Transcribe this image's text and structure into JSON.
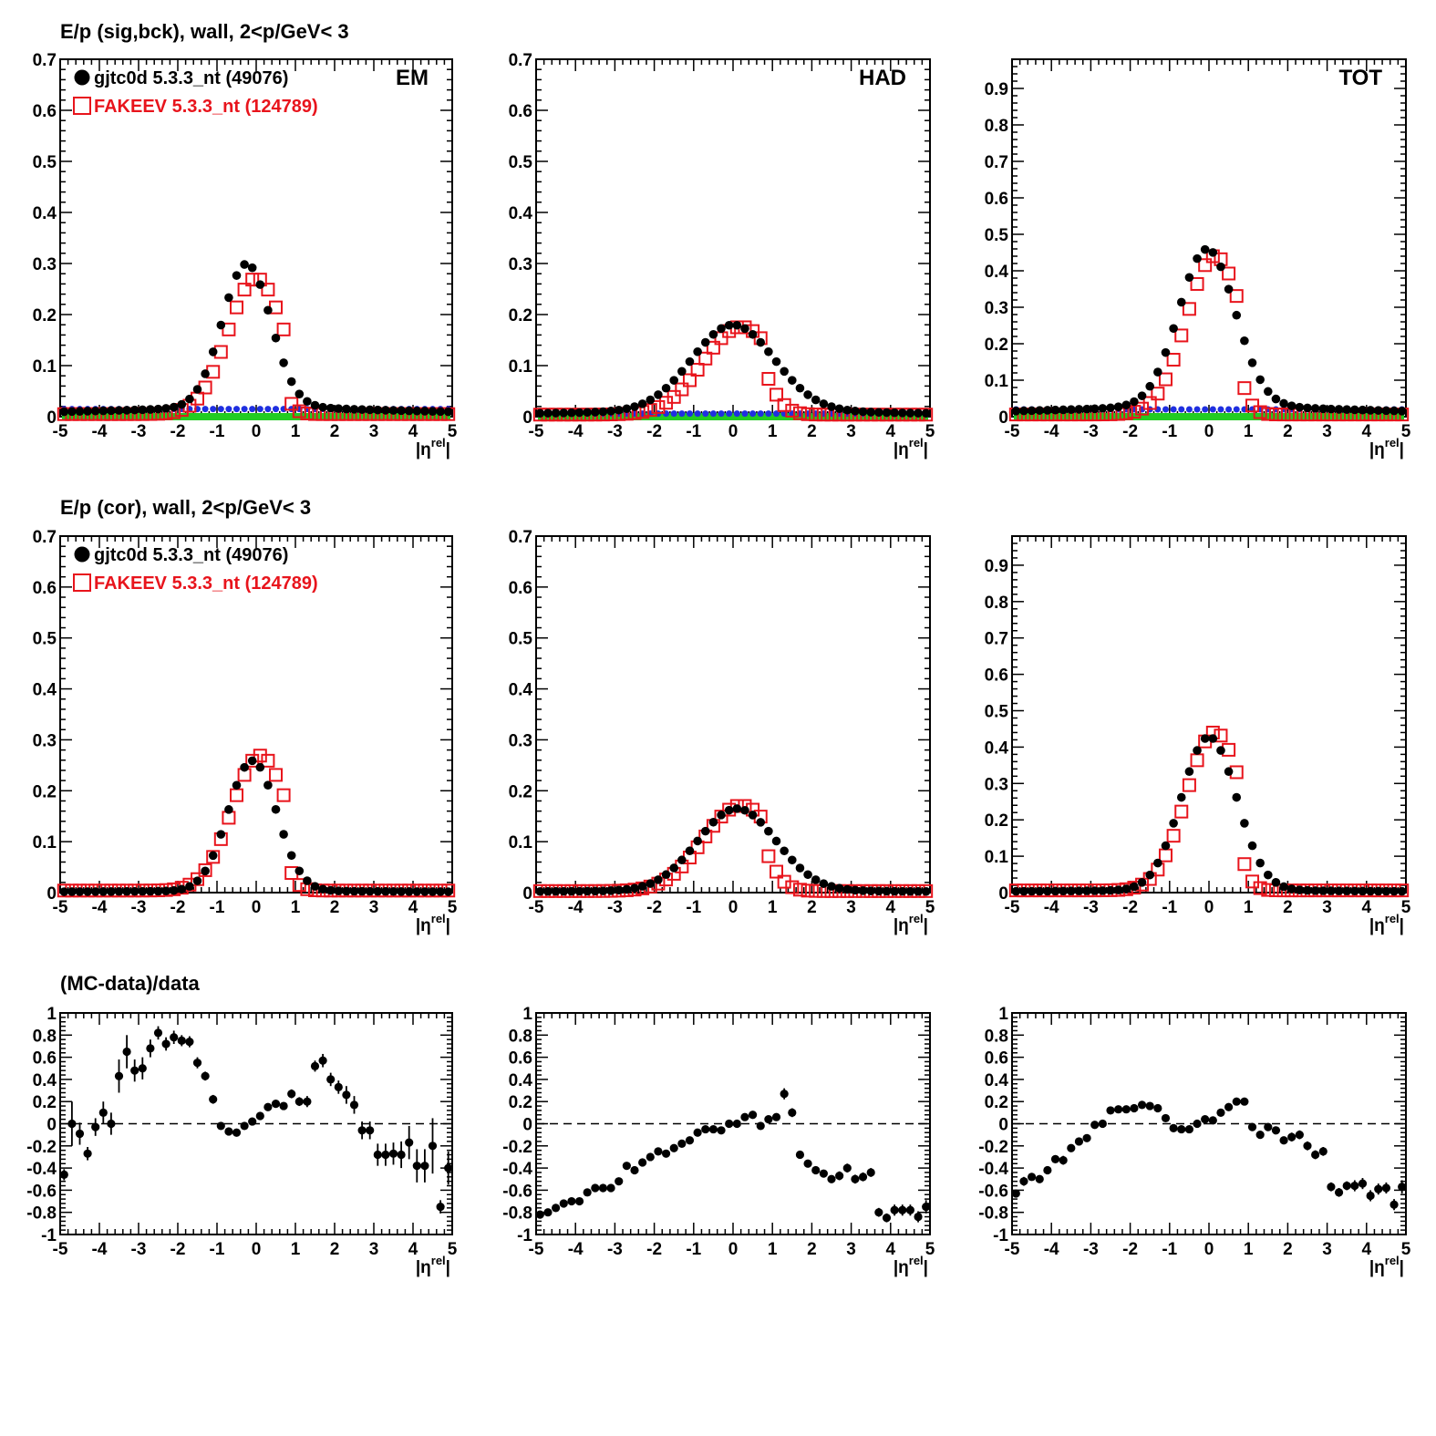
{
  "figure": {
    "row_titles": [
      "E/p (sig,bck), wall,  2<p/GeV< 3",
      "E/p (cor), wall,  2<p/GeV< 3",
      "(MC-data)/data"
    ],
    "xlabel": "|η",
    "xlabel_sup": "rel",
    "xlabel_close": "|",
    "legend": [
      {
        "label": "gjtc0d 5.3.3_nt (49076)",
        "marker": "filled-circle",
        "color": "#000000"
      },
      {
        "label": "FAKEEV 5.3.3_nt (124789)",
        "marker": "open-square",
        "color": "#e8141c"
      }
    ],
    "colors": {
      "data": "#000000",
      "mc": "#e8141c",
      "bck_blue": "#1f2fe0",
      "bck_green": "#22cc22"
    },
    "panel_tags": [
      "EM",
      "HAD",
      "TOT"
    ]
  },
  "chart_data": [
    {
      "id": "sig-em",
      "type": "scatter",
      "title": "E/p (sig,bck), wall,  2<p/GeV< 3",
      "tag": "EM",
      "xlim": [
        -5,
        5
      ],
      "ylim": [
        0,
        0.7
      ],
      "yticks": [
        "0",
        "0.1",
        "0.2",
        "0.3",
        "0.4",
        "0.5",
        "0.6",
        "0.7"
      ],
      "xticks": [
        "-5",
        "-4",
        "-3",
        "-2",
        "-1",
        "0",
        "1",
        "2",
        "3",
        "4",
        "5"
      ],
      "peak": {
        "data_amp": 0.278,
        "data_mu": -0.25,
        "data_sig": 0.62,
        "data_base": 0.022,
        "mc_amp": 0.266,
        "mc_mu": 0.0,
        "mc_sig": 0.72,
        "mc_base": 0.005,
        "cut": 0.9
      },
      "background": {
        "blue": 0.015,
        "green": 0.0
      }
    },
    {
      "id": "sig-had",
      "type": "scatter",
      "title": "",
      "tag": "HAD",
      "xlim": [
        -5,
        5
      ],
      "ylim": [
        0,
        0.7
      ],
      "yticks": [
        "0",
        "0.1",
        "0.2",
        "0.3",
        "0.4",
        "0.5",
        "0.6",
        "0.7"
      ],
      "xticks": [
        "-5",
        "-4",
        "-3",
        "-2",
        "-1",
        "0",
        "1",
        "2",
        "3",
        "4",
        "5"
      ],
      "peak": {
        "data_amp": 0.165,
        "data_mu": 0.0,
        "data_sig": 1.05,
        "data_base": 0.015,
        "mc_amp": 0.172,
        "mc_mu": 0.2,
        "mc_sig": 0.95,
        "mc_base": 0.004,
        "cut": 0.9
      },
      "background": {
        "blue": 0.006,
        "green": 0.0
      }
    },
    {
      "id": "sig-tot",
      "type": "scatter",
      "title": "",
      "tag": "TOT",
      "xlim": [
        -5,
        5
      ],
      "ylim": [
        0,
        0.98
      ],
      "yticks": [
        "0",
        "0.1",
        "0.2",
        "0.3",
        "0.4",
        "0.5",
        "0.6",
        "0.7",
        "0.8",
        "0.9"
      ],
      "xticks": [
        "-5",
        "-4",
        "-3",
        "-2",
        "-1",
        "0",
        "1",
        "2",
        "3",
        "4",
        "5"
      ],
      "peak": {
        "data_amp": 0.425,
        "data_mu": -0.05,
        "data_sig": 0.72,
        "data_base": 0.035,
        "mc_amp": 0.435,
        "mc_mu": 0.15,
        "mc_sig": 0.72,
        "mc_base": 0.006,
        "cut": 0.9
      },
      "background": {
        "blue": 0.02,
        "green": 0.0
      }
    },
    {
      "id": "cor-em",
      "type": "scatter",
      "title": "E/p (cor), wall,  2<p/GeV< 3",
      "tag": "",
      "xlim": [
        -5,
        5
      ],
      "ylim": [
        0,
        0.7
      ],
      "yticks": [
        "0",
        "0.1",
        "0.2",
        "0.3",
        "0.4",
        "0.5",
        "0.6",
        "0.7"
      ],
      "xticks": [
        "-5",
        "-4",
        "-3",
        "-2",
        "-1",
        "0",
        "1",
        "2",
        "3",
        "4",
        "5"
      ],
      "peak": {
        "data_amp": 0.255,
        "data_mu": -0.1,
        "data_sig": 0.62,
        "data_base": 0.004,
        "mc_amp": 0.265,
        "mc_mu": 0.1,
        "mc_sig": 0.72,
        "mc_base": 0.004,
        "cut": 0.9
      },
      "background": null
    },
    {
      "id": "cor-had",
      "type": "scatter",
      "title": "",
      "tag": "",
      "xlim": [
        -5,
        5
      ],
      "ylim": [
        0,
        0.7
      ],
      "yticks": [
        "0",
        "0.1",
        "0.2",
        "0.3",
        "0.4",
        "0.5",
        "0.6",
        "0.7"
      ],
      "xticks": [
        "-5",
        "-4",
        "-3",
        "-2",
        "-1",
        "0",
        "1",
        "2",
        "3",
        "4",
        "5"
      ],
      "peak": {
        "data_amp": 0.16,
        "data_mu": 0.1,
        "data_sig": 1.0,
        "data_base": 0.005,
        "mc_amp": 0.168,
        "mc_mu": 0.2,
        "mc_sig": 0.95,
        "mc_base": 0.003,
        "cut": 0.9
      },
      "background": null
    },
    {
      "id": "cor-tot",
      "type": "scatter",
      "title": "",
      "tag": "",
      "xlim": [
        -5,
        5
      ],
      "ylim": [
        0,
        0.98
      ],
      "yticks": [
        "0",
        "0.1",
        "0.2",
        "0.3",
        "0.4",
        "0.5",
        "0.6",
        "0.7",
        "0.8",
        "0.9"
      ],
      "xticks": [
        "-5",
        "-4",
        "-3",
        "-2",
        "-1",
        "0",
        "1",
        "2",
        "3",
        "4",
        "5"
      ],
      "peak": {
        "data_amp": 0.42,
        "data_mu": 0.0,
        "data_sig": 0.7,
        "data_base": 0.008,
        "mc_amp": 0.435,
        "mc_mu": 0.15,
        "mc_sig": 0.72,
        "mc_base": 0.006,
        "cut": 0.9
      },
      "background": null
    },
    {
      "id": "ratio-em",
      "type": "scatter",
      "title": "(MC-data)/data",
      "tag": "",
      "xlim": [
        -5,
        5
      ],
      "ylim": [
        -1,
        1
      ],
      "yticks": [
        "-1",
        "-0.8",
        "-0.6",
        "-0.4",
        "-0.2",
        "0",
        "0.2",
        "0.4",
        "0.6",
        "0.8",
        "1"
      ],
      "xticks": [
        "-5",
        "-4",
        "-3",
        "-2",
        "-1",
        "0",
        "1",
        "2",
        "3",
        "4",
        "5"
      ],
      "reference_line": 0,
      "ratio": [
        -0.46,
        0.0,
        -0.09,
        -0.27,
        -0.03,
        0.1,
        0.0,
        0.43,
        0.65,
        0.48,
        0.5,
        0.68,
        0.82,
        0.72,
        0.78,
        0.75,
        0.74,
        0.55,
        0.43,
        0.22,
        -0.02,
        -0.07,
        -0.08,
        -0.02,
        0.02,
        0.07,
        0.15,
        0.18,
        0.16,
        0.27,
        0.2,
        0.2,
        0.52,
        0.57,
        0.4,
        0.33,
        0.26,
        0.17,
        -0.06,
        -0.06,
        -0.28,
        -0.28,
        -0.27,
        -0.28,
        -0.17,
        -0.38,
        -0.38,
        -0.2,
        -0.75,
        -0.4
      ],
      "errors": [
        0.05,
        0.2,
        0.1,
        0.06,
        0.08,
        0.1,
        0.1,
        0.15,
        0.15,
        0.1,
        0.1,
        0.08,
        0.06,
        0.06,
        0.06,
        0.05,
        0.05,
        0.05,
        0.04,
        0.04,
        0.03,
        0.03,
        0.03,
        0.03,
        0.03,
        0.03,
        0.03,
        0.03,
        0.03,
        0.04,
        0.04,
        0.05,
        0.05,
        0.06,
        0.06,
        0.06,
        0.08,
        0.08,
        0.08,
        0.08,
        0.1,
        0.1,
        0.1,
        0.12,
        0.15,
        0.15,
        0.15,
        0.25,
        0.06,
        0.15
      ]
    },
    {
      "id": "ratio-had",
      "type": "scatter",
      "title": "",
      "tag": "",
      "xlim": [
        -5,
        5
      ],
      "ylim": [
        -1,
        1
      ],
      "yticks": [
        "-1",
        "-0.8",
        "-0.6",
        "-0.4",
        "-0.2",
        "0",
        "0.2",
        "0.4",
        "0.6",
        "0.8",
        "1"
      ],
      "xticks": [
        "-5",
        "-4",
        "-3",
        "-2",
        "-1",
        "0",
        "1",
        "2",
        "3",
        "4",
        "5"
      ],
      "reference_line": 0,
      "ratio": [
        -0.82,
        -0.8,
        -0.76,
        -0.72,
        -0.7,
        -0.7,
        -0.62,
        -0.58,
        -0.58,
        -0.58,
        -0.52,
        -0.38,
        -0.42,
        -0.35,
        -0.3,
        -0.25,
        -0.27,
        -0.22,
        -0.18,
        -0.15,
        -0.08,
        -0.05,
        -0.05,
        -0.06,
        0.0,
        0.0,
        0.06,
        0.08,
        -0.02,
        0.04,
        0.06,
        0.27,
        0.1,
        -0.28,
        -0.36,
        -0.42,
        -0.45,
        -0.5,
        -0.47,
        -0.4,
        -0.5,
        -0.48,
        -0.44,
        -0.8,
        -0.85,
        -0.78,
        -0.78,
        -0.78,
        -0.84,
        -0.75
      ],
      "errors": [
        0.03,
        0.03,
        0.03,
        0.03,
        0.03,
        0.03,
        0.03,
        0.03,
        0.03,
        0.03,
        0.03,
        0.03,
        0.03,
        0.03,
        0.03,
        0.03,
        0.03,
        0.03,
        0.03,
        0.03,
        0.03,
        0.03,
        0.03,
        0.03,
        0.03,
        0.03,
        0.03,
        0.03,
        0.03,
        0.03,
        0.03,
        0.05,
        0.04,
        0.03,
        0.03,
        0.03,
        0.03,
        0.03,
        0.04,
        0.04,
        0.04,
        0.04,
        0.04,
        0.04,
        0.04,
        0.05,
        0.05,
        0.05,
        0.05,
        0.06
      ]
    },
    {
      "id": "ratio-tot",
      "type": "scatter",
      "title": "",
      "tag": "",
      "xlim": [
        -5,
        5
      ],
      "ylim": [
        -1,
        1
      ],
      "yticks": [
        "-1",
        "-0.8",
        "-0.6",
        "-0.4",
        "-0.2",
        "0",
        "0.2",
        "0.4",
        "0.6",
        "0.8",
        "1"
      ],
      "xticks": [
        "-5",
        "-4",
        "-3",
        "-2",
        "-1",
        "0",
        "1",
        "2",
        "3",
        "4",
        "5"
      ],
      "reference_line": 0,
      "ratio": [
        -0.63,
        -0.52,
        -0.48,
        -0.5,
        -0.42,
        -0.32,
        -0.33,
        -0.22,
        -0.16,
        -0.13,
        -0.01,
        0.0,
        0.12,
        0.13,
        0.13,
        0.14,
        0.17,
        0.16,
        0.14,
        0.05,
        -0.04,
        -0.05,
        -0.05,
        0.0,
        0.04,
        0.03,
        0.1,
        0.15,
        0.2,
        0.2,
        -0.03,
        -0.1,
        -0.03,
        -0.06,
        -0.15,
        -0.12,
        -0.1,
        -0.2,
        -0.28,
        -0.25,
        -0.57,
        -0.62,
        -0.56,
        -0.56,
        -0.54,
        -0.65,
        -0.59,
        -0.58,
        -0.73,
        -0.57
      ],
      "errors": [
        0.03,
        0.04,
        0.03,
        0.03,
        0.03,
        0.03,
        0.04,
        0.03,
        0.03,
        0.03,
        0.03,
        0.03,
        0.03,
        0.03,
        0.03,
        0.03,
        0.03,
        0.03,
        0.03,
        0.03,
        0.03,
        0.03,
        0.03,
        0.03,
        0.03,
        0.03,
        0.03,
        0.03,
        0.03,
        0.03,
        0.03,
        0.03,
        0.03,
        0.03,
        0.03,
        0.04,
        0.04,
        0.04,
        0.04,
        0.04,
        0.04,
        0.04,
        0.04,
        0.05,
        0.05,
        0.05,
        0.05,
        0.05,
        0.05,
        0.06
      ]
    }
  ]
}
